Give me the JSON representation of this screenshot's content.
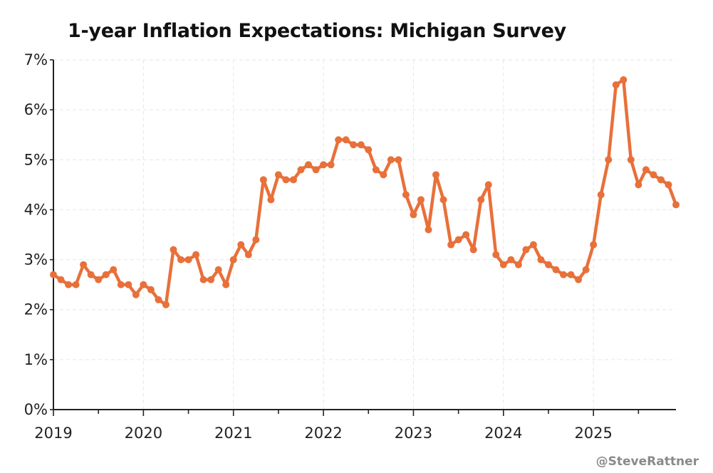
{
  "title": "1-year Inflation Expectations: Michigan Survey",
  "credit": "@SteveRattner",
  "colors": {
    "series": "#e8703a",
    "axis": "#222222",
    "grid": "#e6e6e6",
    "credit": "#8a8a8a"
  },
  "chart_data": {
    "type": "line",
    "title": "1-year Inflation Expectations: Michigan Survey",
    "xlabel": "",
    "ylabel": "",
    "x_start": "2019-01",
    "x_frequency": "monthly",
    "x_range": [
      2019.0,
      2025.9167
    ],
    "ylim": [
      0,
      7
    ],
    "y_ticks": [
      0,
      1,
      2,
      3,
      4,
      5,
      6,
      7
    ],
    "y_tick_labels": [
      "0%",
      "1%",
      "2%",
      "3%",
      "4%",
      "5%",
      "6%",
      "7%"
    ],
    "x_ticks": [
      2019,
      2020,
      2021,
      2022,
      2023,
      2024,
      2025
    ],
    "x_tick_labels": [
      "2019",
      "2020",
      "2021",
      "2022",
      "2023",
      "2024",
      "2025"
    ],
    "grid": true,
    "legend": "none",
    "series": [
      {
        "name": "1-year Inflation Expectations",
        "values": [
          2.7,
          2.6,
          2.5,
          2.5,
          2.9,
          2.7,
          2.6,
          2.7,
          2.8,
          2.5,
          2.5,
          2.3,
          2.5,
          2.4,
          2.2,
          2.1,
          3.2,
          3.0,
          3.0,
          3.1,
          2.6,
          2.6,
          2.8,
          2.5,
          3.0,
          3.3,
          3.1,
          3.4,
          4.6,
          4.2,
          4.7,
          4.6,
          4.6,
          4.8,
          4.9,
          4.8,
          4.9,
          4.9,
          5.4,
          5.4,
          5.3,
          5.3,
          5.2,
          4.8,
          4.7,
          5.0,
          5.0,
          4.3,
          3.9,
          4.2,
          3.6,
          4.7,
          4.2,
          3.3,
          3.4,
          3.5,
          3.2,
          4.2,
          4.5,
          3.1,
          2.9,
          3.0,
          2.9,
          3.2,
          3.3,
          3.0,
          2.9,
          2.8,
          2.7,
          2.7,
          2.6,
          2.8,
          3.3,
          4.3,
          5.0,
          6.5,
          6.6,
          5.0,
          4.5,
          4.8,
          4.7,
          4.6,
          4.5,
          4.1
        ]
      }
    ]
  }
}
